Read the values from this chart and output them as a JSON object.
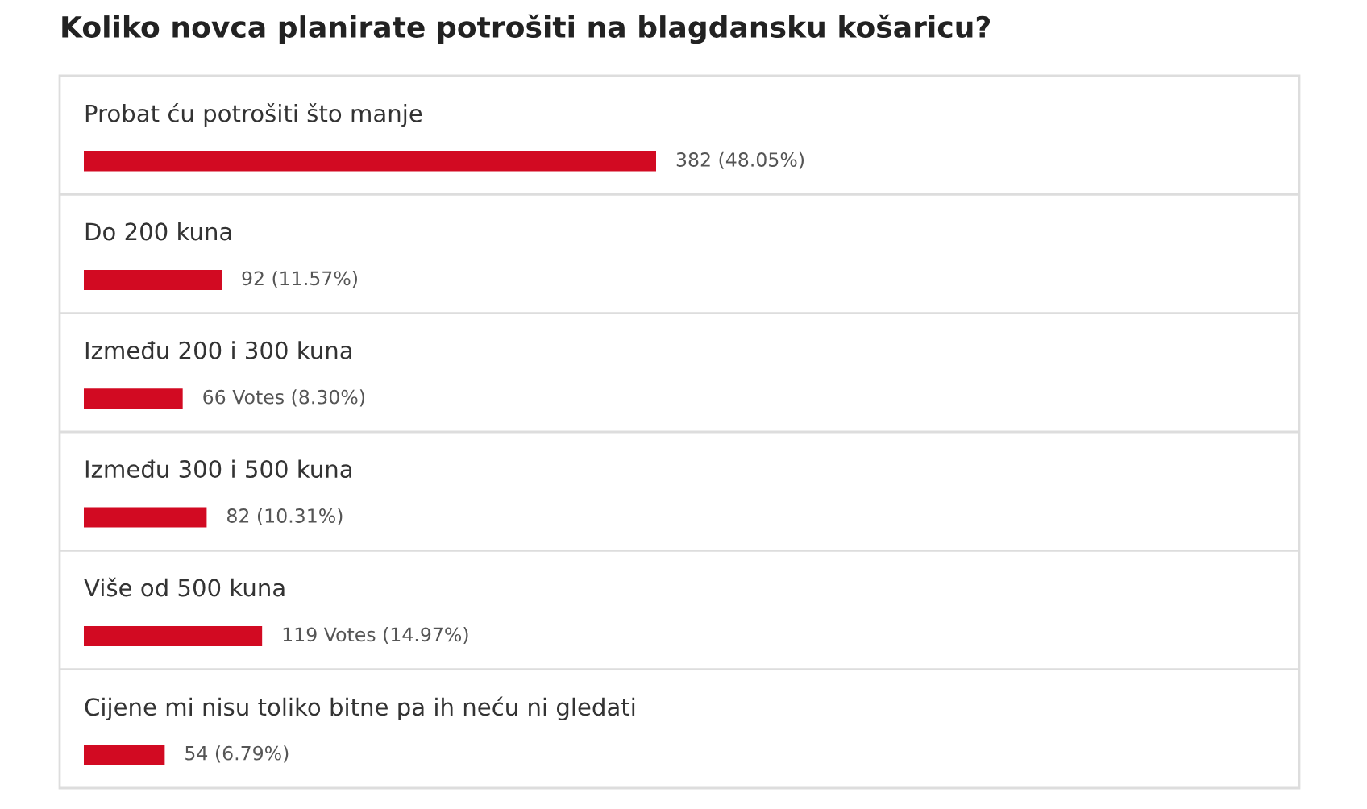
{
  "chart_data": {
    "type": "bar",
    "orientation": "horizontal",
    "title": "Koliko novca planirate potrošiti na blagdansku košaricu?",
    "categories": [
      "Probat ću potrošiti što manje",
      "Do 200 kuna",
      "Između 200 i 300 kuna",
      "Između 300 i 500 kuna",
      "Više od 500 kuna",
      "Cijene mi nisu toliko bitne pa ih neću ni gledati"
    ],
    "values": [
      382,
      92,
      66,
      82,
      119,
      54
    ],
    "value_labels": [
      "382 (48.05%)",
      "92 (11.57%)",
      "66 Votes (8.30%)",
      "82 (10.31%)",
      "119 Votes (14.97%)",
      "54 (6.79%)"
    ],
    "color": "#d20a22"
  }
}
